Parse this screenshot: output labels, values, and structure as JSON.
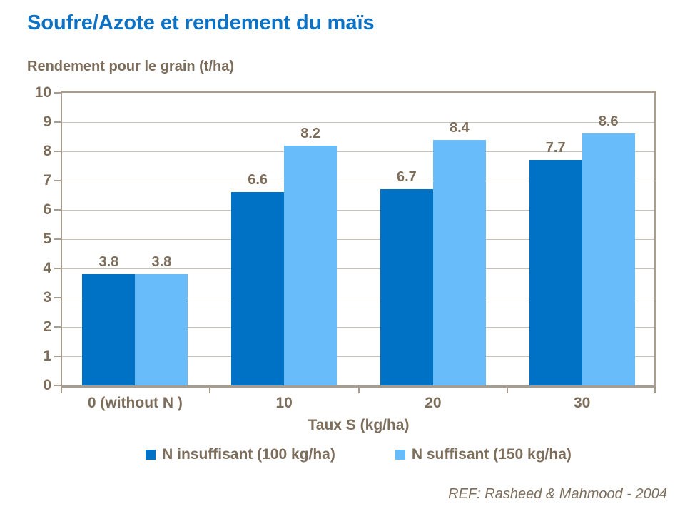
{
  "page": {
    "title": "Soufre/Azote et rendement du maïs",
    "footer_ref": "REF: Rasheed & Mahmood - 2004"
  },
  "colors": {
    "title_blue": "#0D72C4",
    "text_brown": "#7D6D5B",
    "axis_line": "#A79D8F",
    "gridline": "#C9C1B4",
    "series1": "#0072C6",
    "series2": "#69BCFA"
  },
  "chart_data": {
    "type": "bar",
    "title": "Rendement pour le grain (t/ha)",
    "xlabel": "Taux S (kg/ha)",
    "ylabel": "Rendement pour le grain (t/ha)",
    "categories": [
      "0 (without N )",
      "10",
      "20",
      "30"
    ],
    "series": [
      {
        "name": "N insuffisant (100 kg/ha)",
        "color": "#0072C6",
        "values": [
          3.8,
          6.6,
          6.7,
          7.7
        ]
      },
      {
        "name": "N suffisant (150 kg/ha)",
        "color": "#69BCFA",
        "values": [
          3.8,
          8.2,
          8.4,
          8.6
        ]
      }
    ],
    "ylim": [
      0,
      10
    ],
    "ytick_step": 1,
    "grid": true,
    "data_labels": true,
    "legend_position": "bottom"
  }
}
